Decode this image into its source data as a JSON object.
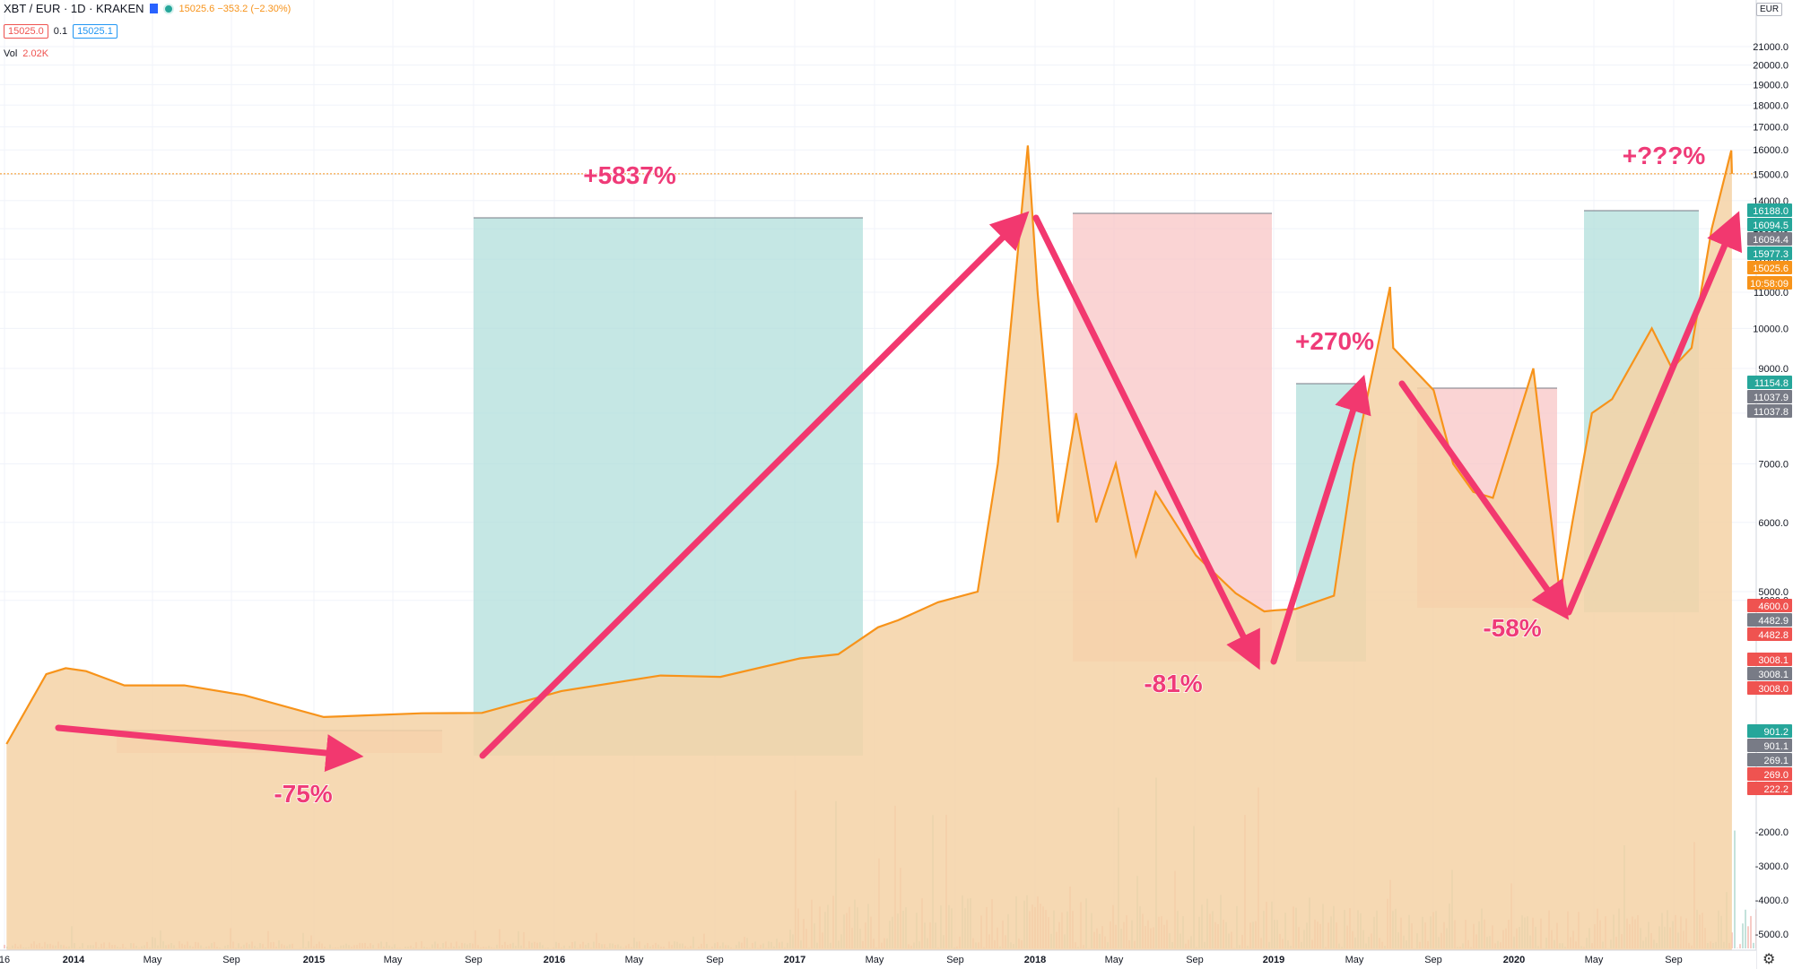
{
  "header": {
    "symbol": "XBT / EUR · 1D · KRAKEN",
    "ohlc": "15025.6  −353.2 (−2.30%)",
    "bid": "15025.0",
    "spread": "0.1",
    "ask": "15025.1",
    "volume_label": "Vol",
    "volume_value": "2.02K",
    "currency": "EUR",
    "settings_icon": "gear-icon"
  },
  "chart_data": {
    "type": "area",
    "pair": "XBT / EUR",
    "interval": "1D",
    "exchange": "KRAKEN",
    "y_axis_right": {
      "scale": "log",
      "ticks": [
        21000,
        20000,
        19000,
        18000,
        17000,
        16000,
        15000,
        14000,
        13000,
        12000,
        11000,
        10000,
        9000,
        8000,
        7000,
        6000,
        5000,
        4000
      ],
      "volume_ticks": [
        -2000,
        -3000,
        -4000,
        -5000
      ],
      "price_tags": [
        {
          "label": "16188.0",
          "color": "#26a69a"
        },
        {
          "label": "16094.5",
          "color": "#26a69a"
        },
        {
          "label": "16094.4",
          "color": "#787b86"
        },
        {
          "label": "15977.3",
          "color": "#26a69a"
        },
        {
          "label": "15025.6",
          "color": "#f7931a"
        },
        {
          "label": "10:58:09",
          "color": "#f7931a"
        },
        {
          "label": "11154.8",
          "color": "#26a69a"
        },
        {
          "label": "11037.9",
          "color": "#787b86"
        },
        {
          "label": "11037.8",
          "color": "#787b86"
        },
        {
          "label": "4600.0",
          "color": "#ef5350"
        },
        {
          "label": "4482.9",
          "color": "#787b86"
        },
        {
          "label": "4482.8",
          "color": "#ef5350"
        },
        {
          "label": "3008.1",
          "color": "#ef5350"
        },
        {
          "label": "3008.1",
          "color": "#787b86"
        },
        {
          "label": "3008.0",
          "color": "#ef5350"
        },
        {
          "label": "901.2",
          "color": "#26a69a"
        },
        {
          "label": "901.1",
          "color": "#787b86"
        },
        {
          "label": "269.1",
          "color": "#787b86"
        },
        {
          "label": "269.0",
          "color": "#ef5350"
        },
        {
          "label": "222.2",
          "color": "#ef5350"
        }
      ]
    },
    "x_axis": {
      "ticks": [
        "16",
        "2014",
        "May",
        "Sep",
        "2015",
        "May",
        "Sep",
        "2016",
        "May",
        "Sep",
        "2017",
        "May",
        "Sep",
        "2018",
        "May",
        "Sep",
        "2019",
        "May",
        "Sep",
        "2020",
        "May",
        "Sep"
      ]
    },
    "series": [
      {
        "name": "XBT / EUR",
        "color": "#f7931a",
        "points": [
          [
            "2013-09",
            100
          ],
          [
            "2013-11",
            600
          ],
          [
            "2013-12",
            700
          ],
          [
            "2014-01",
            650
          ],
          [
            "2014-03",
            450
          ],
          [
            "2014-06",
            450
          ],
          [
            "2014-09",
            350
          ],
          [
            "2015-01",
            200
          ],
          [
            "2015-06",
            220
          ],
          [
            "2015-09",
            222
          ],
          [
            "2016-01",
            390
          ],
          [
            "2016-06",
            580
          ],
          [
            "2016-09",
            560
          ],
          [
            "2017-01",
            900
          ],
          [
            "2017-03",
            1000
          ],
          [
            "2017-05",
            2000
          ],
          [
            "2017-06",
            2400
          ],
          [
            "2017-08",
            3800
          ],
          [
            "2017-10",
            5000
          ],
          [
            "2017-11",
            7000
          ],
          [
            "2017-12-17",
            16188
          ],
          [
            "2018-01",
            11000
          ],
          [
            "2018-02",
            6000
          ],
          [
            "2018-03",
            8000
          ],
          [
            "2018-04",
            6000
          ],
          [
            "2018-05",
            7000
          ],
          [
            "2018-06",
            5500
          ],
          [
            "2018-07",
            6500
          ],
          [
            "2018-09",
            5500
          ],
          [
            "2018-11",
            4800
          ],
          [
            "2018-12-15",
            3008
          ],
          [
            "2019-01",
            3100
          ],
          [
            "2019-02",
            3200
          ],
          [
            "2019-04",
            4500
          ],
          [
            "2019-05",
            7000
          ],
          [
            "2019-06-26",
            11154
          ],
          [
            "2019-07",
            9500
          ],
          [
            "2019-09",
            8500
          ],
          [
            "2019-10",
            7000
          ],
          [
            "2019-11",
            6500
          ],
          [
            "2019-12",
            6400
          ],
          [
            "2020-02",
            9000
          ],
          [
            "2020-03-13",
            4600
          ],
          [
            "2020-04",
            6000
          ],
          [
            "2020-05",
            8000
          ],
          [
            "2020-06",
            8300
          ],
          [
            "2020-08",
            10000
          ],
          [
            "2020-09",
            9000
          ],
          [
            "2020-10",
            9500
          ],
          [
            "2020-11",
            13000
          ],
          [
            "2020-12",
            15977
          ],
          [
            "2020-12-02",
            15025
          ]
        ]
      }
    ],
    "volume": {
      "name": "Vol",
      "value": "2.02K"
    },
    "annotations": [
      {
        "text": "-75%",
        "color": "#ef3b78"
      },
      {
        "text": "+5837%",
        "color": "#ef3b78"
      },
      {
        "text": "-81%",
        "color": "#ef3b78"
      },
      {
        "text": "+270%",
        "color": "#ef3b78"
      },
      {
        "text": "-58%",
        "color": "#ef3b78"
      },
      {
        "text": "+???%",
        "color": "#ef3b78"
      }
    ],
    "colors": {
      "line": "#f7931a",
      "area_fill": "#f5d2a6",
      "gain_box": "#b2dfdb",
      "loss_box": "#f8c5c5",
      "arrow": "#f2386f"
    },
    "grid": true
  }
}
